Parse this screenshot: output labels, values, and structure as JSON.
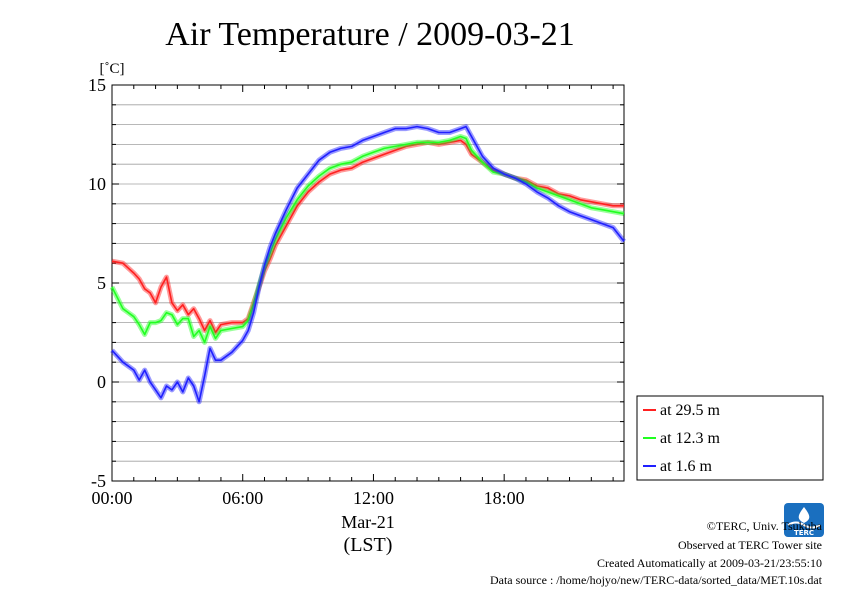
{
  "chart_data": {
    "type": "line",
    "title": "Air Temperature / 2009-03-21",
    "ylabel": "[˚C]",
    "xlabel": "(LST)",
    "date_label": "Mar-21",
    "ylim": [
      -5,
      15
    ],
    "yticks": [
      -5,
      0,
      5,
      10,
      15
    ],
    "xlim": [
      0,
      23.5
    ],
    "xticks": [
      {
        "value": 0,
        "label": "00:00"
      },
      {
        "value": 6,
        "label": "06:00"
      },
      {
        "value": 12,
        "label": "12:00"
      },
      {
        "value": 18,
        "label": "18:00"
      }
    ],
    "grid": true,
    "legend_position": "right",
    "series": [
      {
        "name": "at 29.5 m",
        "color": "#ff2020",
        "x": [
          0,
          0.5,
          1,
          1.25,
          1.5,
          1.75,
          2,
          2.25,
          2.5,
          2.75,
          3,
          3.25,
          3.5,
          3.75,
          4,
          4.25,
          4.5,
          4.75,
          5,
          5.5,
          6,
          6.25,
          6.5,
          6.75,
          7,
          7.25,
          7.5,
          8,
          8.5,
          9,
          9.5,
          10,
          10.5,
          11,
          11.5,
          12,
          12.5,
          13,
          13.5,
          14,
          14.5,
          15,
          15.5,
          16,
          16.25,
          16.5,
          17,
          17.5,
          18,
          18.5,
          19,
          19.5,
          20,
          20.5,
          21,
          21.5,
          22,
          22.5,
          23,
          23.5
        ],
        "y": [
          6.1,
          6.0,
          5.5,
          5.2,
          4.7,
          4.5,
          4.0,
          4.8,
          5.3,
          4.0,
          3.6,
          3.9,
          3.4,
          3.7,
          3.2,
          2.6,
          3.1,
          2.5,
          2.9,
          3.0,
          3.0,
          3.2,
          4.0,
          4.8,
          5.6,
          6.2,
          6.9,
          7.9,
          8.9,
          9.6,
          10.1,
          10.5,
          10.7,
          10.8,
          11.1,
          11.3,
          11.5,
          11.7,
          11.9,
          12.0,
          12.1,
          12.0,
          12.1,
          12.2,
          12.0,
          11.5,
          11.1,
          10.7,
          10.5,
          10.3,
          10.2,
          9.9,
          9.8,
          9.5,
          9.4,
          9.2,
          9.1,
          9.0,
          8.9,
          8.9
        ]
      },
      {
        "name": "at 12.3 m",
        "color": "#20ff20",
        "x": [
          0,
          0.5,
          1,
          1.25,
          1.5,
          1.75,
          2,
          2.25,
          2.5,
          2.75,
          3,
          3.25,
          3.5,
          3.75,
          4,
          4.25,
          4.5,
          4.75,
          5,
          5.5,
          6,
          6.25,
          6.5,
          6.75,
          7,
          7.25,
          7.5,
          8,
          8.5,
          9,
          9.5,
          10,
          10.5,
          11,
          11.5,
          12,
          12.5,
          13,
          13.5,
          14,
          14.5,
          15,
          15.5,
          16,
          16.25,
          16.5,
          17,
          17.5,
          18,
          18.5,
          19,
          19.5,
          20,
          20.5,
          21,
          21.5,
          22,
          22.5,
          23,
          23.5
        ],
        "y": [
          4.8,
          3.7,
          3.3,
          2.9,
          2.4,
          3.0,
          3.0,
          3.1,
          3.5,
          3.4,
          2.9,
          3.2,
          3.2,
          2.3,
          2.6,
          2.0,
          2.8,
          2.2,
          2.6,
          2.7,
          2.8,
          3.1,
          3.9,
          4.9,
          5.8,
          6.5,
          7.2,
          8.3,
          9.2,
          9.9,
          10.4,
          10.8,
          11.0,
          11.1,
          11.4,
          11.6,
          11.8,
          11.9,
          12.0,
          12.1,
          12.1,
          12.1,
          12.2,
          12.4,
          12.3,
          11.7,
          11.1,
          10.6,
          10.5,
          10.3,
          10.1,
          9.8,
          9.6,
          9.4,
          9.2,
          9.0,
          8.8,
          8.7,
          8.6,
          8.5
        ]
      },
      {
        "name": "at 1.6 m",
        "color": "#2020ff",
        "x": [
          0,
          0.5,
          1,
          1.25,
          1.5,
          1.75,
          2,
          2.25,
          2.5,
          2.75,
          3,
          3.25,
          3.5,
          3.75,
          4,
          4.25,
          4.5,
          4.75,
          5,
          5.5,
          6,
          6.25,
          6.5,
          6.75,
          7,
          7.25,
          7.5,
          8,
          8.5,
          9,
          9.5,
          10,
          10.5,
          11,
          11.5,
          12,
          12.5,
          13,
          13.5,
          14,
          14.5,
          15,
          15.5,
          16,
          16.25,
          16.5,
          17,
          17.5,
          18,
          18.5,
          19,
          19.5,
          20,
          20.5,
          21,
          21.5,
          22,
          22.5,
          23,
          23.5
        ],
        "y": [
          1.6,
          1.0,
          0.6,
          0.1,
          0.6,
          0.0,
          -0.4,
          -0.8,
          -0.2,
          -0.4,
          0.0,
          -0.5,
          0.2,
          -0.2,
          -1.0,
          0.3,
          1.7,
          1.1,
          1.1,
          1.5,
          2.1,
          2.6,
          3.5,
          4.8,
          5.9,
          6.8,
          7.5,
          8.7,
          9.8,
          10.5,
          11.2,
          11.6,
          11.8,
          11.9,
          12.2,
          12.4,
          12.6,
          12.8,
          12.8,
          12.9,
          12.8,
          12.6,
          12.6,
          12.8,
          12.9,
          12.4,
          11.4,
          10.8,
          10.5,
          10.3,
          10.0,
          9.6,
          9.3,
          8.9,
          8.6,
          8.4,
          8.2,
          8.0,
          7.8,
          7.1
        ]
      }
    ]
  },
  "credits": {
    "copyright": "©TERC, Univ. Tsukuba",
    "site": "Observed at TERC Tower site",
    "created": "Created Automatically at 2009-03-21/23:55:10",
    "source": "Data source : /home/hojyo/new/TERC-data/sorted_data/MET.10s.dat",
    "logo_text": "TERC",
    "logo_color": "#1a6fbf"
  }
}
